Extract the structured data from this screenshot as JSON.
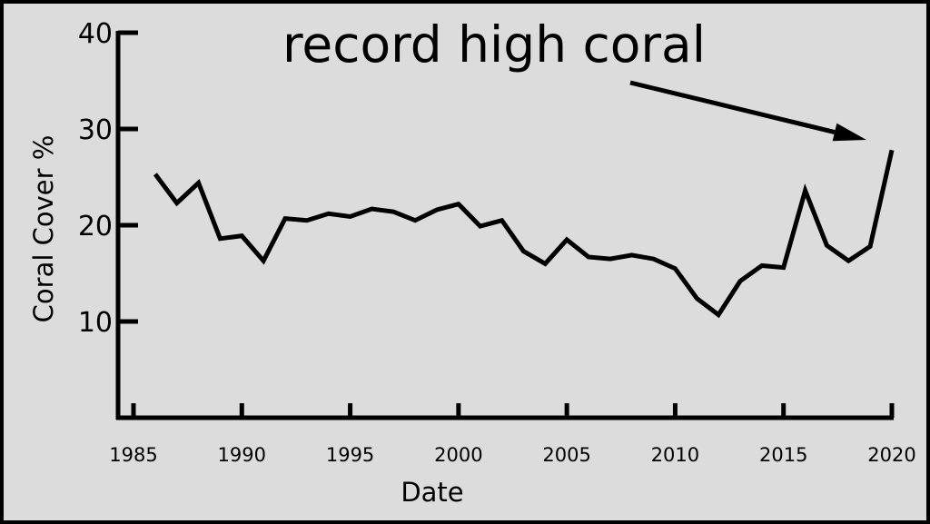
{
  "chart_data": {
    "type": "line",
    "title": "",
    "xlabel": "Date",
    "ylabel": "Coral Cover %",
    "annotation": "record high coral",
    "x_ticks": [
      "1985",
      "1990",
      "1995",
      "2000",
      "2005",
      "2010",
      "2015",
      "2020"
    ],
    "y_ticks": [
      "10",
      "20",
      "30",
      "40"
    ],
    "xlim": [
      1984.3,
      2020.3
    ],
    "ylim": [
      0,
      40
    ],
    "grid": false,
    "colors": {
      "line": "#000000",
      "background": "#dcdcdc",
      "border": "#000000"
    },
    "series": [
      {
        "x": [
          1986,
          1987,
          1988,
          1989,
          1990,
          1991,
          1992,
          1993,
          1994,
          1995,
          1996,
          1997,
          1998,
          1999,
          2000,
          2001,
          2002,
          2003,
          2004,
          2005,
          2006,
          2007,
          2008,
          2009,
          2010,
          2011,
          2012,
          2013,
          2014,
          2015,
          2016,
          2017,
          2018,
          2019,
          2020
        ],
        "values": [
          25.3,
          22.3,
          24.4,
          18.6,
          18.9,
          16.3,
          20.7,
          20.5,
          21.2,
          20.9,
          21.7,
          21.4,
          20.5,
          21.6,
          22.2,
          19.9,
          20.5,
          17.3,
          16.0,
          18.5,
          16.7,
          16.5,
          16.9,
          16.5,
          15.5,
          12.4,
          10.7,
          14.2,
          15.8,
          15.6,
          23.6,
          17.9,
          16.3,
          17.8,
          27.8
        ]
      }
    ]
  }
}
